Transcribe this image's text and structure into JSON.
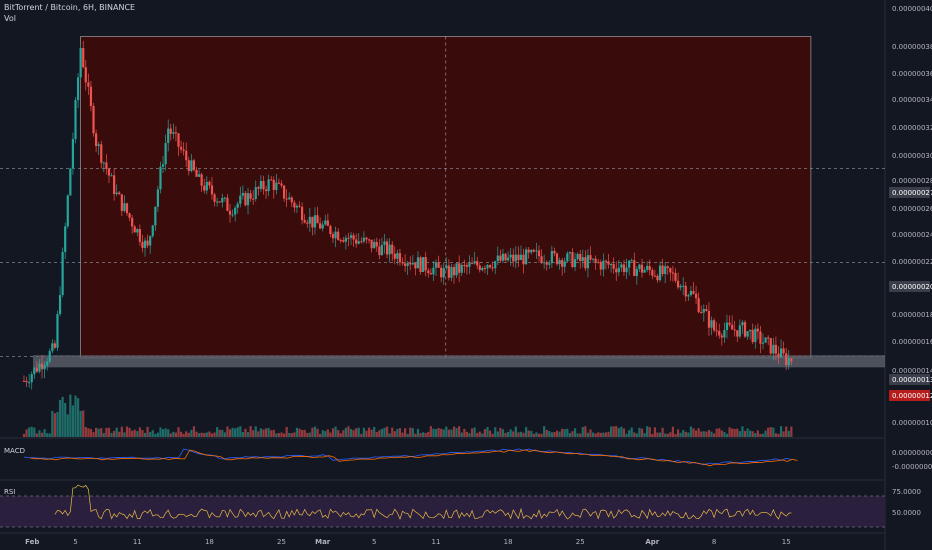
{
  "header": {
    "symbol": "BitTorrent / Bitcoin, 6H, BINANCE",
    "vol_label": "Vol"
  },
  "panels": {
    "macd_label": "MACD",
    "rsi_label": "RSI"
  },
  "colors": {
    "up": "#26a69a",
    "down": "#ef5350",
    "box_fill": "#3a0b0b",
    "rsi_line": "#e8b84a",
    "macd_line": "#2962ff",
    "signal_line": "#ff6d00",
    "rsi_band": "#2a1f3d"
  },
  "chart_data": [
    {
      "type": "candlestick",
      "title": "BitTorrent / Bitcoin, 6H, BINANCE",
      "ylim": [
        9.4e-09,
        4e-08
      ],
      "y_ticks": [
        "0.00000040",
        "0.00000038",
        "0.00000036",
        "0.00000034",
        "0.00000032",
        "0.00000030",
        "0.00000028",
        "0.00000026",
        "0.00000024",
        "0.00000022",
        "0.00000018",
        "0.00000016",
        "0.00000014",
        "0.00000010"
      ],
      "price_tags": [
        "0.00000027",
        "0.00000020",
        "0.00000013",
        "0.00000012"
      ],
      "x_ticks": [
        "Feb",
        "5",
        "11",
        "18",
        "25",
        "Mar",
        "5",
        "11",
        "18",
        "25",
        "Apr",
        "8",
        "15"
      ],
      "anchors": [
        {
          "day": 0,
          "price": 1.12e-08
        },
        {
          "day": 3,
          "price": 1.36e-08
        },
        {
          "day": 5.5,
          "price": 3.6e-08
        },
        {
          "day": 7,
          "price": 2.9e-08
        },
        {
          "day": 9,
          "price": 2.5e-08
        },
        {
          "day": 12,
          "price": 2.1e-08
        },
        {
          "day": 14,
          "price": 3e-08
        },
        {
          "day": 17,
          "price": 2.6e-08
        },
        {
          "day": 20,
          "price": 2.4e-08
        },
        {
          "day": 24,
          "price": 2.6e-08
        },
        {
          "day": 28,
          "price": 2.3e-08
        },
        {
          "day": 31,
          "price": 2.2e-08
        },
        {
          "day": 35,
          "price": 2.1e-08
        },
        {
          "day": 38,
          "price": 2e-08
        },
        {
          "day": 41,
          "price": 1.92e-08
        },
        {
          "day": 45,
          "price": 2e-08
        },
        {
          "day": 50,
          "price": 2.05e-08
        },
        {
          "day": 55,
          "price": 2e-08
        },
        {
          "day": 60,
          "price": 1.95e-08
        },
        {
          "day": 63,
          "price": 1.9e-08
        },
        {
          "day": 65,
          "price": 1.75e-08
        },
        {
          "day": 67,
          "price": 1.5e-08
        },
        {
          "day": 70,
          "price": 1.5e-08
        },
        {
          "day": 72,
          "price": 1.4e-08
        },
        {
          "day": 74,
          "price": 1.28e-08
        }
      ]
    },
    {
      "type": "bar",
      "name": "Vol"
    },
    {
      "type": "line",
      "name": "MACD",
      "y_ticks": [
        "0.00000000",
        "-0.00000001"
      ]
    },
    {
      "type": "line",
      "name": "RSI",
      "y_ticks": [
        "75.0000",
        "50.0000"
      ]
    }
  ]
}
